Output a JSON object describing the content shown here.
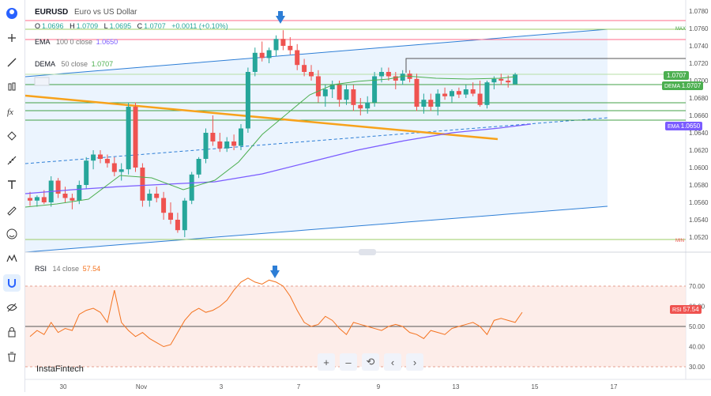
{
  "symbol": "EURUSD",
  "description": "Euro vs US Dollar",
  "ohlc": {
    "o_label": "O",
    "o": "1.0696",
    "h_label": "H",
    "h": "1.0709",
    "l_label": "L",
    "l": "1.0695",
    "c_label": "C",
    "c": "1.0707",
    "change": "+0.0011 (+0.10%)"
  },
  "ema": {
    "label": "EMA",
    "params": "100 0 close",
    "value": "1.0650",
    "tag": "EMA",
    "tag_value": "1.0650"
  },
  "dema": {
    "label": "DEMA",
    "params": "50 close",
    "value": "1.0707",
    "tag": "DEMA",
    "tag_value": "1.0707"
  },
  "price_tag": "1.0707",
  "max_label": "MAX",
  "min_label": "MIN",
  "rsi": {
    "label": "RSI",
    "params": "14 close",
    "value": "57.54",
    "tag": "RSI",
    "tag_value": "57.54"
  },
  "watermark": "InstaFintech",
  "colors": {
    "up": "#26a69a",
    "down": "#ef5350",
    "ema": "#7b5cff",
    "dema": "#4caf50",
    "rsi": "#f4731f",
    "fib": "#43a047",
    "channel": "#2d7ed6",
    "trend": "#f7a21b",
    "resistance": "#ff6b8a"
  },
  "toolbar_icons": [
    "avatar-icon",
    "crosshair-icon",
    "trend-line-icon",
    "candles-icon",
    "fx-icon",
    "path-icon",
    "ruler-icon",
    "text-icon",
    "brush-icon",
    "emoji-icon",
    "wave-icon",
    "magnet-icon",
    "eye-off-icon",
    "lock-icon",
    "trash-icon"
  ],
  "controls": [
    "+",
    "–",
    "⟲",
    "‹",
    "›"
  ],
  "chart_data": {
    "type": "candlestick",
    "y_axis_ticks": [
      "1.0780",
      "1.0760",
      "1.0740",
      "1.0720",
      "1.0700",
      "1.0680",
      "1.0660",
      "1.0640",
      "1.0620",
      "1.0600",
      "1.0580",
      "1.0560",
      "1.0540",
      "1.0520"
    ],
    "x_axis_ticks": [
      "30",
      "Nov",
      "3",
      "7",
      "9",
      "13",
      "15",
      "17"
    ],
    "rsi_ticks": [
      "70.00",
      "60.00",
      "50.00",
      "40.00",
      "30.00"
    ]
  }
}
